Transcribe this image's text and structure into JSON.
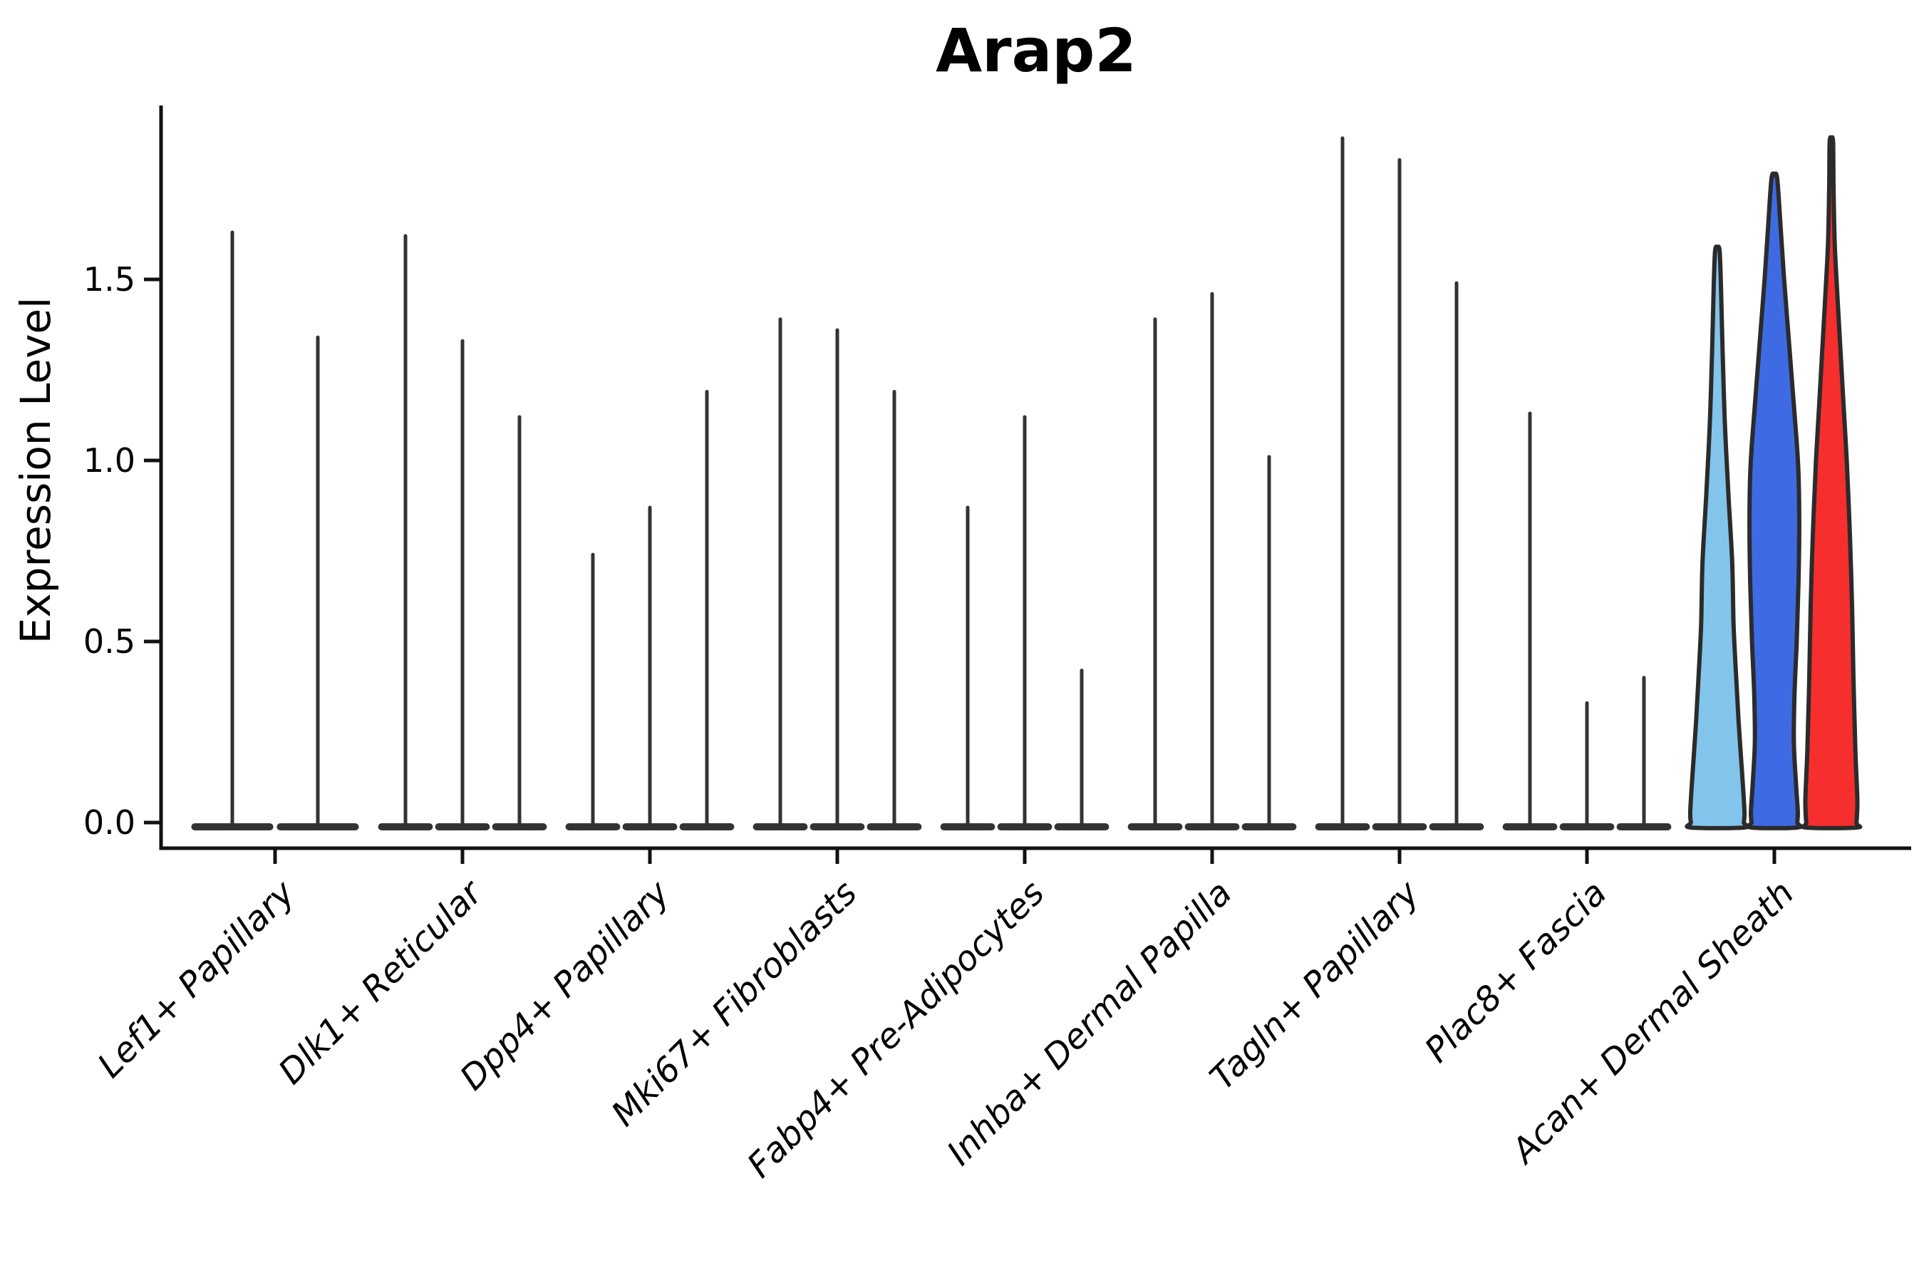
{
  "title": "Arap2",
  "chart_data": {
    "type": "violin",
    "title": "Arap2",
    "xlabel": "",
    "ylabel": "Expression Level",
    "ylim": [
      -0.07,
      1.97
    ],
    "yticks": [
      0.0,
      0.5,
      1.0,
      1.5
    ],
    "ytick_labels": [
      "0.0",
      "0.5",
      "1.0",
      "1.5"
    ],
    "grid": "off",
    "legend": "none",
    "categories": [
      "Lef1+ Papillary",
      "Dlk1+ Reticular",
      "Dpp4+ Papillary",
      "Mki67+ Fibroblasts",
      "Fabp4+ Pre-Adipocytes",
      "Inhba+ Dermal Papilla",
      "Tagln+ Papillary",
      "Plac8+ Fascia",
      "Acan+ Dermal Sheath"
    ],
    "description": "Violin plot of Arap2 expression per fibroblast cluster; most violins collapse to a flat base at 0 with a thin spike to the max value; the last cluster (Acan+ Dermal Sheath) shows three wide filled violins.",
    "groups": [
      {
        "category": "Lef1+ Papillary",
        "violins": [
          {
            "peak": 1.63,
            "fill": "none"
          },
          {
            "peak": 1.34,
            "fill": "none"
          }
        ]
      },
      {
        "category": "Dlk1+ Reticular",
        "violins": [
          {
            "peak": 1.62,
            "fill": "none"
          },
          {
            "peak": 1.33,
            "fill": "none"
          },
          {
            "peak": 1.12,
            "fill": "none"
          }
        ]
      },
      {
        "category": "Dpp4+ Papillary",
        "violins": [
          {
            "peak": 0.74,
            "fill": "none"
          },
          {
            "peak": 0.87,
            "fill": "none"
          },
          {
            "peak": 1.19,
            "fill": "none"
          }
        ]
      },
      {
        "category": "Mki67+ Fibroblasts",
        "violins": [
          {
            "peak": 1.39,
            "fill": "none"
          },
          {
            "peak": 1.36,
            "fill": "none"
          },
          {
            "peak": 1.19,
            "fill": "none"
          }
        ]
      },
      {
        "category": "Fabp4+ Pre-Adipocytes",
        "violins": [
          {
            "peak": 0.87,
            "fill": "none"
          },
          {
            "peak": 1.12,
            "fill": "none"
          },
          {
            "peak": 0.42,
            "fill": "none"
          }
        ]
      },
      {
        "category": "Inhba+ Dermal Papilla",
        "violins": [
          {
            "peak": 1.39,
            "fill": "none"
          },
          {
            "peak": 1.46,
            "fill": "none"
          },
          {
            "peak": 1.01,
            "fill": "none"
          }
        ]
      },
      {
        "category": "Tagln+ Papillary",
        "violins": [
          {
            "peak": 1.89,
            "fill": "none"
          },
          {
            "peak": 1.83,
            "fill": "none"
          },
          {
            "peak": 1.49,
            "fill": "none"
          }
        ]
      },
      {
        "category": "Plac8+ Fascia",
        "violins": [
          {
            "peak": 1.13,
            "fill": "none"
          },
          {
            "peak": 0.33,
            "fill": "none"
          },
          {
            "peak": 0.4,
            "fill": "none"
          }
        ]
      },
      {
        "category": "Acan+ Dermal Sheath",
        "violins": [
          {
            "peak": 1.58,
            "fill": "#83C5EA",
            "profile": [
              [
                1.58,
                0.08
              ],
              [
                1.48,
                0.13
              ],
              [
                1.3,
                0.19
              ],
              [
                1.1,
                0.27
              ],
              [
                0.9,
                0.4
              ],
              [
                0.72,
                0.53
              ],
              [
                0.55,
                0.58
              ],
              [
                0.42,
                0.66
              ],
              [
                0.28,
                0.76
              ],
              [
                0.12,
                0.9
              ],
              [
                0.03,
                0.97
              ],
              [
                0.0,
                0.95
              ]
            ]
          },
          {
            "peak": 1.78,
            "fill": "#3E6BE4",
            "profile": [
              [
                1.78,
                0.1
              ],
              [
                1.65,
                0.22
              ],
              [
                1.5,
                0.35
              ],
              [
                1.35,
                0.5
              ],
              [
                1.2,
                0.65
              ],
              [
                1.05,
                0.8
              ],
              [
                0.95,
                0.87
              ],
              [
                0.8,
                0.89
              ],
              [
                0.65,
                0.86
              ],
              [
                0.5,
                0.8
              ],
              [
                0.35,
                0.72
              ],
              [
                0.22,
                0.7
              ],
              [
                0.1,
                0.78
              ],
              [
                0.03,
                0.84
              ],
              [
                0.0,
                0.82
              ]
            ]
          },
          {
            "peak": 1.88,
            "fill": "#F72E2E",
            "profile": [
              [
                1.88,
                0.06
              ],
              [
                1.75,
                0.08
              ],
              [
                1.6,
                0.12
              ],
              [
                1.45,
                0.22
              ],
              [
                1.3,
                0.33
              ],
              [
                1.15,
                0.44
              ],
              [
                1.0,
                0.55
              ],
              [
                0.8,
                0.66
              ],
              [
                0.6,
                0.74
              ],
              [
                0.4,
                0.79
              ],
              [
                0.2,
                0.86
              ],
              [
                0.06,
                0.93
              ],
              [
                0.0,
                0.9
              ]
            ]
          }
        ]
      }
    ],
    "colors": {
      "spike": "#333333",
      "base_blob": "#333333",
      "violin_outline": "#2B2B2B",
      "axis": "#111111",
      "text": "#000000",
      "background": "#ffffff"
    }
  }
}
